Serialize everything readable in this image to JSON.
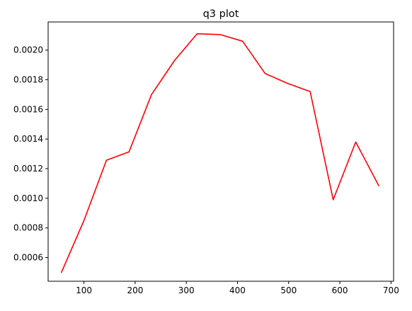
{
  "chart_data": {
    "type": "line",
    "title": "q3 plot",
    "xlabel": "",
    "ylabel": "",
    "xlim": [
      30,
      705
    ],
    "ylim": [
      0.00044,
      0.00219
    ],
    "grid": false,
    "xticks": [
      100,
      200,
      300,
      400,
      500,
      600,
      700
    ],
    "yticks": [
      0.0006,
      0.0008,
      0.001,
      0.0012,
      0.0014,
      0.0016,
      0.0018,
      0.002
    ],
    "series": [
      {
        "color": "#ff0000",
        "x": [
          56,
          100,
          144,
          188,
          232,
          277,
          321,
          366,
          410,
          454,
          498,
          542,
          587,
          631,
          676
        ],
        "y": [
          0.0005,
          0.00085,
          0.001257,
          0.001313,
          0.0017,
          0.00193,
          0.00211,
          0.002105,
          0.00206,
          0.001842,
          0.001775,
          0.00172,
          0.00099,
          0.00138,
          0.001085
        ]
      }
    ]
  }
}
